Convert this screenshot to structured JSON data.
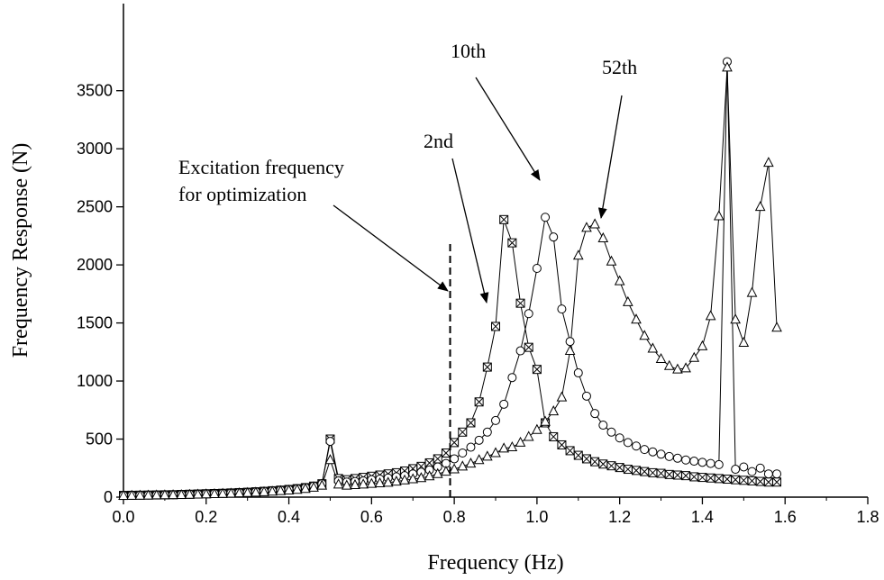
{
  "chart_data": {
    "type": "line",
    "x_label": "Frequency (Hz)",
    "y_label": "Frequency Response (N)",
    "xlim": [
      0,
      1.8
    ],
    "ylim": [
      0,
      4250
    ],
    "xticks": [
      {
        "value": 0,
        "label": "0.0"
      },
      0.2,
      0.4,
      0.6,
      0.8,
      {
        "value": 1,
        "label": "1.0"
      },
      1.2,
      1.4,
      1.6,
      1.8
    ],
    "yticks": [
      0,
      500,
      1000,
      1500,
      2000,
      2500,
      3000,
      3500
    ],
    "x": [
      0,
      0.02,
      0.04,
      0.06,
      0.08,
      0.1,
      0.12,
      0.14,
      0.16,
      0.18,
      0.2,
      0.22,
      0.24,
      0.26,
      0.28,
      0.3,
      0.32,
      0.34,
      0.36,
      0.38,
      0.4,
      0.42,
      0.44,
      0.46,
      0.48,
      0.5,
      0.52,
      0.54,
      0.56,
      0.58,
      0.6,
      0.62,
      0.64,
      0.66,
      0.68,
      0.7,
      0.72,
      0.74,
      0.76,
      0.78,
      0.8,
      0.82,
      0.84,
      0.86,
      0.88,
      0.9,
      0.92,
      0.94,
      0.96,
      0.98,
      1,
      1.02,
      1.04,
      1.06,
      1.08,
      1.1,
      1.12,
      1.14,
      1.16,
      1.18,
      1.2,
      1.22,
      1.24,
      1.26,
      1.28,
      1.3,
      1.32,
      1.34,
      1.36,
      1.38,
      1.4,
      1.42,
      1.44,
      1.46,
      1.48,
      1.5,
      1.52,
      1.54,
      1.56,
      1.58
    ],
    "series": [
      {
        "marker": "square-x",
        "color": "#000000",
        "values": [
          15,
          16,
          17,
          18,
          19,
          20,
          21,
          23,
          25,
          27,
          29,
          31,
          33,
          36,
          39,
          42,
          46,
          50,
          55,
          60,
          66,
          73,
          82,
          95,
          115,
          500,
          160,
          150,
          160,
          170,
          180,
          190,
          200,
          210,
          225,
          245,
          265,
          295,
          330,
          380,
          470,
          560,
          640,
          820,
          1120,
          1470,
          2390,
          2190,
          1670,
          1290,
          1100,
          640,
          520,
          450,
          400,
          360,
          330,
          305,
          285,
          270,
          255,
          240,
          230,
          220,
          210,
          205,
          195,
          190,
          185,
          175,
          170,
          165,
          160,
          155,
          150,
          145,
          140,
          135,
          130,
          130
        ]
      },
      {
        "marker": "circle",
        "color": "#000000",
        "values": [
          15,
          16,
          17,
          18,
          19,
          20,
          21,
          23,
          25,
          27,
          29,
          31,
          33,
          36,
          39,
          42,
          46,
          50,
          55,
          60,
          66,
          73,
          82,
          95,
          115,
          480,
          140,
          130,
          135,
          140,
          150,
          155,
          165,
          175,
          185,
          200,
          215,
          235,
          260,
          290,
          330,
          380,
          430,
          490,
          560,
          660,
          800,
          1030,
          1260,
          1580,
          1970,
          2410,
          2240,
          1620,
          1340,
          1070,
          870,
          720,
          620,
          560,
          510,
          470,
          440,
          410,
          390,
          370,
          350,
          335,
          320,
          310,
          300,
          290,
          280,
          3750,
          240,
          260,
          220,
          250,
          200,
          200
        ]
      },
      {
        "marker": "triangle",
        "color": "#000000",
        "values": [
          12,
          13,
          14,
          15,
          16,
          17,
          18,
          19,
          21,
          23,
          25,
          27,
          29,
          31,
          34,
          37,
          40,
          44,
          48,
          53,
          58,
          64,
          72,
          82,
          100,
          320,
          110,
          100,
          105,
          110,
          115,
          120,
          125,
          135,
          145,
          155,
          165,
          180,
          200,
          220,
          240,
          265,
          290,
          320,
          350,
          380,
          420,
          430,
          470,
          520,
          580,
          650,
          740,
          860,
          1260,
          2080,
          2320,
          2350,
          2230,
          2030,
          1860,
          1680,
          1530,
          1390,
          1280,
          1190,
          1130,
          1100,
          1110,
          1200,
          1300,
          1560,
          2420,
          3700,
          1530,
          1330,
          1760,
          2500,
          2880,
          1460
        ]
      }
    ],
    "excitation_line": {
      "x": 0.79,
      "top": 2200
    },
    "annotations": [
      "10th",
      "2nd",
      "52th",
      "Excitation frequency",
      "for optimization"
    ]
  }
}
